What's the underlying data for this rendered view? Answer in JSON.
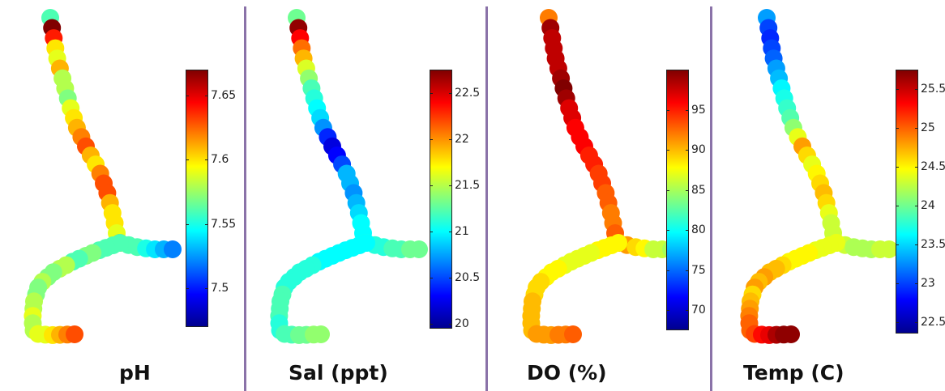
{
  "colormap": [
    "#00008f",
    "#0000ff",
    "#0080ff",
    "#00ffff",
    "#80ff80",
    "#ffff00",
    "#ff8000",
    "#ff0000",
    "#800000"
  ],
  "chart_data": [
    {
      "type": "heatmap",
      "title": "pH",
      "colorbar": {
        "min": 7.47,
        "max": 7.67,
        "ticks": [
          "7.5",
          "7.55",
          "7.6",
          "7.65"
        ]
      },
      "points": [
        [
          7.56,
          7.67,
          7.64,
          7.6,
          7.59,
          7.61,
          7.58,
          7.58,
          7.57,
          7.59,
          7.6,
          7.61,
          7.62,
          7.63,
          7.61,
          7.6,
          7.62,
          7.63,
          7.63,
          7.61,
          7.6,
          7.6,
          7.59,
          7.6
        ],
        [
          7.62,
          7.56,
          7.56,
          7.55,
          7.54,
          7.53,
          7.52
        ],
        [
          7.56,
          7.56,
          7.56,
          7.56,
          7.57,
          7.57,
          7.56,
          7.56,
          7.58,
          7.58,
          7.57,
          7.57,
          7.58,
          7.57,
          7.57,
          7.58,
          7.58,
          7.59,
          7.58,
          7.58,
          7.59,
          7.59,
          7.6,
          7.61,
          7.62,
          7.63
        ]
      ]
    },
    {
      "type": "heatmap",
      "title": "Sal (ppt)",
      "colorbar": {
        "min": 19.95,
        "max": 22.75,
        "ticks": [
          "20",
          "20.5",
          "21",
          "21.5",
          "22",
          "22.5"
        ]
      },
      "points": [
        [
          21.3,
          22.7,
          22.4,
          22.1,
          21.9,
          21.6,
          21.4,
          21.2,
          21.1,
          21.0,
          20.9,
          20.7,
          20.4,
          20.2,
          20.3,
          20.5,
          20.8,
          20.8,
          20.7,
          20.8,
          20.9,
          21.0,
          21.0,
          21.1
        ],
        [
          21.1,
          21.1,
          21.1,
          21.2,
          21.2,
          21.3,
          21.3
        ],
        [
          21.0,
          21.0,
          21.0,
          21.0,
          21.0,
          21.0,
          21.0,
          21.0,
          21.1,
          21.1,
          21.1,
          21.1,
          21.1,
          21.1,
          21.2,
          21.2,
          21.2,
          21.2,
          21.1,
          21.1,
          21.2,
          21.2,
          21.3,
          21.3,
          21.4,
          21.4
        ]
      ]
    },
    {
      "type": "heatmap",
      "title": "DO (%)",
      "colorbar": {
        "min": 67.5,
        "max": 100,
        "ticks": [
          "70",
          "75",
          "80",
          "85",
          "90",
          "95"
        ]
      },
      "points": [
        [
          92,
          99,
          98,
          98,
          98,
          98,
          99,
          100,
          99,
          97,
          97,
          96,
          96,
          96,
          95,
          95,
          94,
          94,
          93,
          93,
          92,
          92,
          93,
          94
        ],
        [
          94,
          91,
          89,
          88,
          86,
          86,
          85
        ],
        [
          88,
          88,
          88,
          88,
          87,
          87,
          87,
          87,
          87,
          88,
          88,
          88,
          89,
          89,
          89,
          90,
          90,
          90,
          90,
          90,
          91,
          91,
          91,
          92,
          92,
          93
        ]
      ]
    },
    {
      "type": "heatmap",
      "title": "Temp (C)",
      "colorbar": {
        "min": 22.35,
        "max": 25.75,
        "ticks": [
          "22.5",
          "23",
          "23.5",
          "24",
          "24.5",
          "25",
          "25.5"
        ]
      },
      "points": [
        [
          23.3,
          23.0,
          22.9,
          23.0,
          23.1,
          23.3,
          23.4,
          23.6,
          23.7,
          23.8,
          23.9,
          24.1,
          24.4,
          24.8,
          24.6,
          24.4,
          24.5,
          24.6,
          24.7,
          24.6,
          24.4,
          24.3,
          24.3,
          24.5
        ],
        [
          24.4,
          24.3,
          24.2,
          24.2,
          24.2,
          24.3,
          24.3
        ],
        [
          24.4,
          24.4,
          24.4,
          24.4,
          24.5,
          24.5,
          24.5,
          24.5,
          24.6,
          24.7,
          24.7,
          24.8,
          24.7,
          24.8,
          24.6,
          24.7,
          24.8,
          24.9,
          25.0,
          25.0,
          25.1,
          25.3,
          25.4,
          25.6,
          25.7,
          25.7
        ]
      ]
    }
  ]
}
